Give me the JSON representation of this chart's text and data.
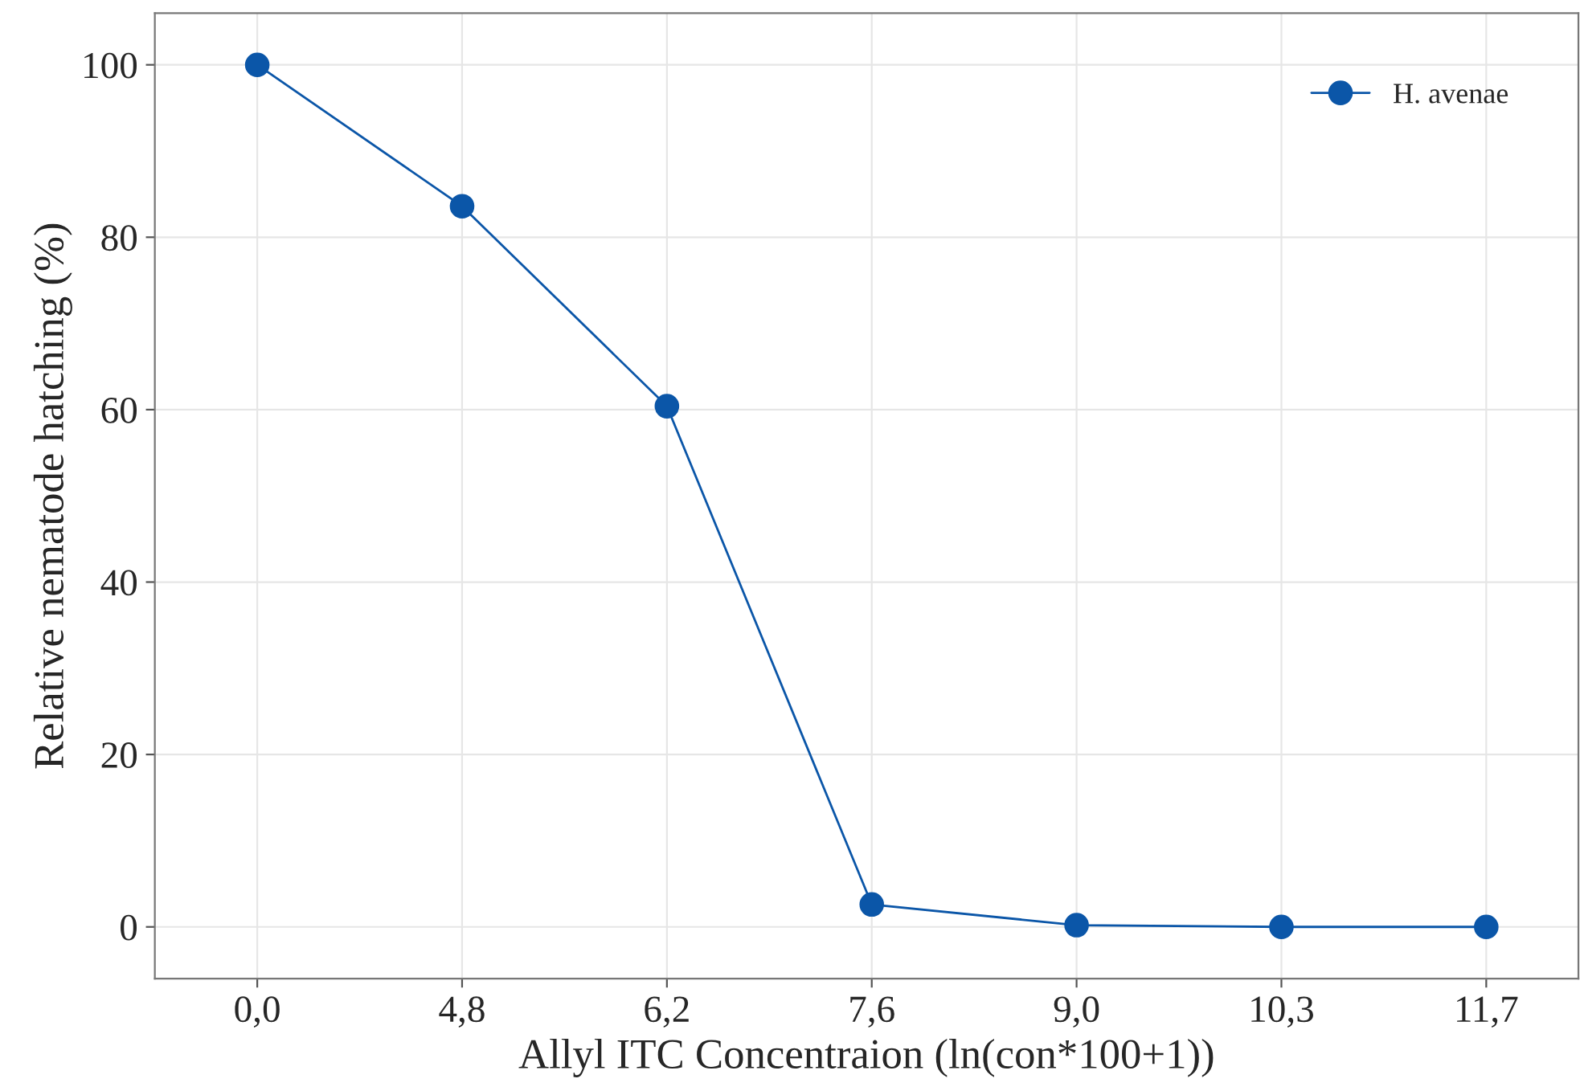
{
  "chart_data": {
    "type": "line",
    "xlabel": "Allyl ITC Concentraion (ln(con*100+1))",
    "ylabel": "Relative nematode hatching (%)",
    "categories": [
      "0,0",
      "4,8",
      "6,2",
      "7,6",
      "9,0",
      "10,3",
      "11,7"
    ],
    "series": [
      {
        "name": "H. avenae",
        "color": "#0b56a8",
        "values": [
          100,
          83.6,
          60.4,
          2.6,
          0.2,
          0,
          0
        ]
      }
    ],
    "ylim": [
      -6,
      106
    ],
    "yticks": [
      0,
      20,
      40,
      60,
      80,
      100
    ],
    "grid": true,
    "legend": "top right",
    "marker": "circle",
    "line_style": "solid"
  }
}
